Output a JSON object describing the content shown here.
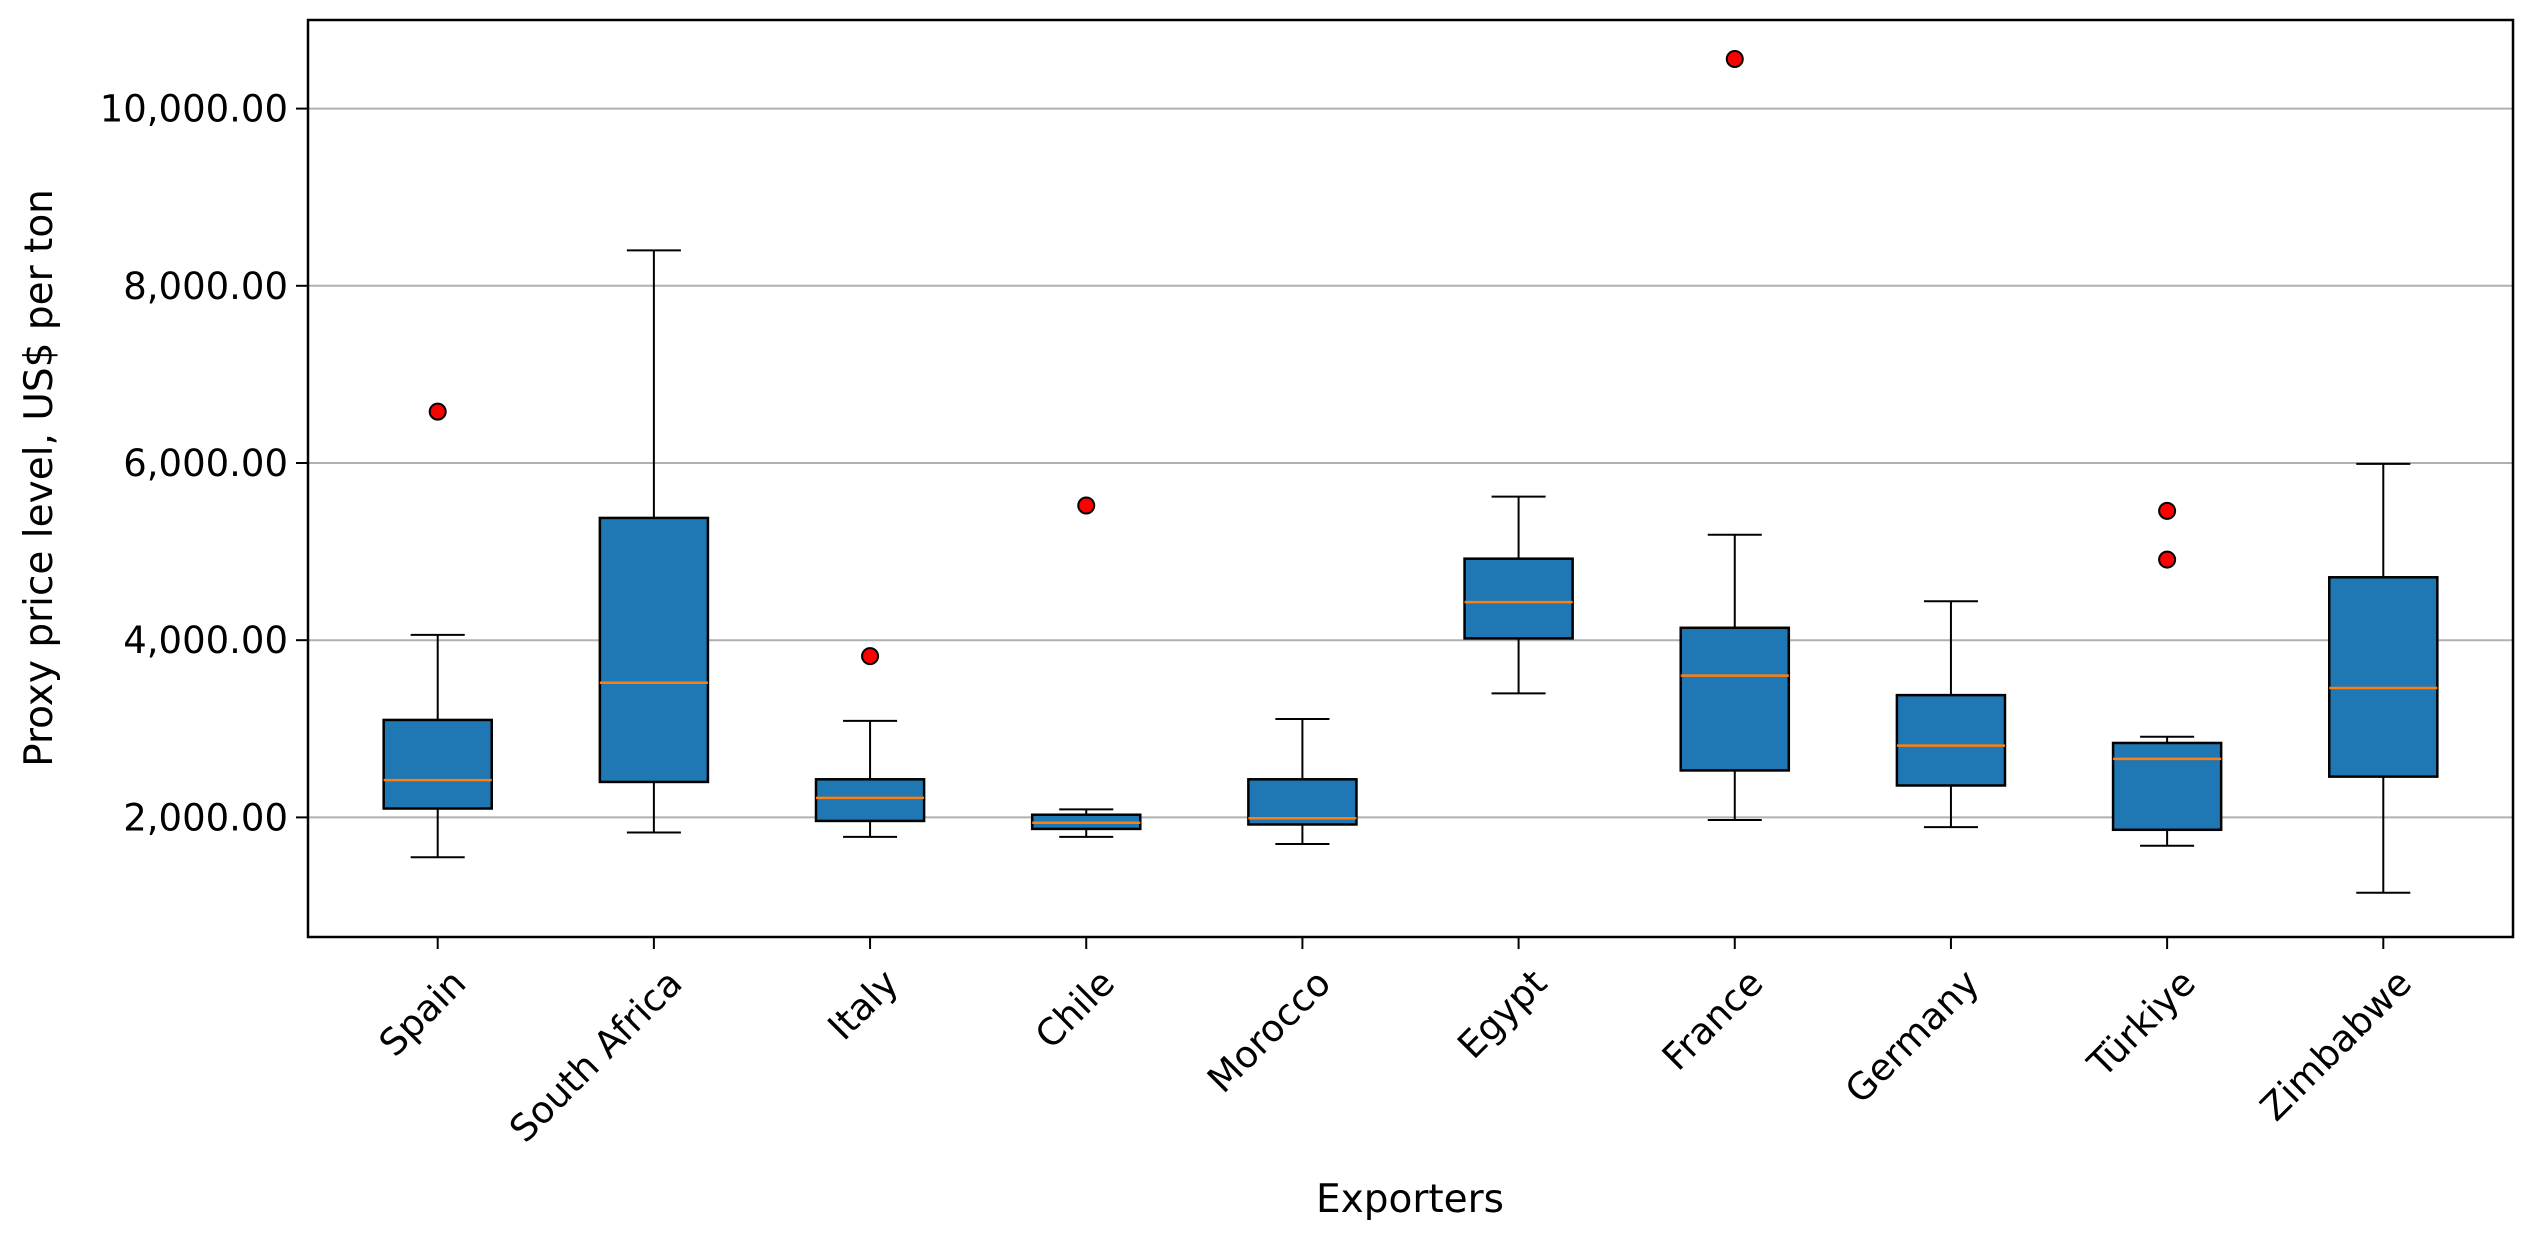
{
  "chart_data": {
    "type": "box",
    "title": "",
    "xlabel": "Exporters",
    "ylabel": "Proxy price level, US$ per ton",
    "ylim": [
      650,
      11000
    ],
    "yticks": [
      2000,
      4000,
      6000,
      8000,
      10000
    ],
    "ytick_labels": [
      "2,000.00",
      "4,000.00",
      "6,000.00",
      "8,000.00",
      "10,000.00"
    ],
    "grid": {
      "y": true,
      "x": false
    },
    "colors": {
      "box_fill": "#1f77b4",
      "median": "#ff7f0e",
      "outlier": "#ff0000",
      "grid": "#b0b0b0"
    },
    "categories": [
      "Spain",
      "South Africa",
      "Italy",
      "Chile",
      "Morocco",
      "Egypt",
      "France",
      "Germany",
      "Türkiye",
      "Zimbabwe"
    ],
    "boxes": [
      {
        "category": "Spain",
        "whisker_low": 1550,
        "q1": 2100,
        "median": 2420,
        "q3": 3100,
        "whisker_high": 4060,
        "outliers": [
          6580
        ]
      },
      {
        "category": "South Africa",
        "whisker_low": 1830,
        "q1": 2400,
        "median": 3520,
        "q3": 5380,
        "whisker_high": 8400,
        "outliers": []
      },
      {
        "category": "Italy",
        "whisker_low": 1780,
        "q1": 1960,
        "median": 2220,
        "q3": 2430,
        "whisker_high": 3090,
        "outliers": [
          3820
        ]
      },
      {
        "category": "Chile",
        "whisker_low": 1780,
        "q1": 1870,
        "median": 1940,
        "q3": 2030,
        "whisker_high": 2090,
        "outliers": [
          5520
        ]
      },
      {
        "category": "Morocco",
        "whisker_low": 1700,
        "q1": 1920,
        "median": 1990,
        "q3": 2430,
        "whisker_high": 3110,
        "outliers": []
      },
      {
        "category": "Egypt",
        "whisker_low": 3400,
        "q1": 4020,
        "median": 4430,
        "q3": 4920,
        "whisker_high": 5620,
        "outliers": []
      },
      {
        "category": "France",
        "whisker_low": 1970,
        "q1": 2530,
        "median": 3600,
        "q3": 4140,
        "whisker_high": 5190,
        "outliers": [
          10560
        ]
      },
      {
        "category": "Germany",
        "whisker_low": 1890,
        "q1": 2360,
        "median": 2810,
        "q3": 3380,
        "whisker_high": 4440,
        "outliers": []
      },
      {
        "category": "Türkiye",
        "whisker_low": 1680,
        "q1": 1860,
        "median": 2660,
        "q3": 2840,
        "whisker_high": 2910,
        "outliers": [
          4910,
          5460
        ]
      },
      {
        "category": "Zimbabwe",
        "whisker_low": 1150,
        "q1": 2460,
        "median": 3460,
        "q3": 4710,
        "whisker_high": 5990,
        "outliers": []
      }
    ]
  }
}
